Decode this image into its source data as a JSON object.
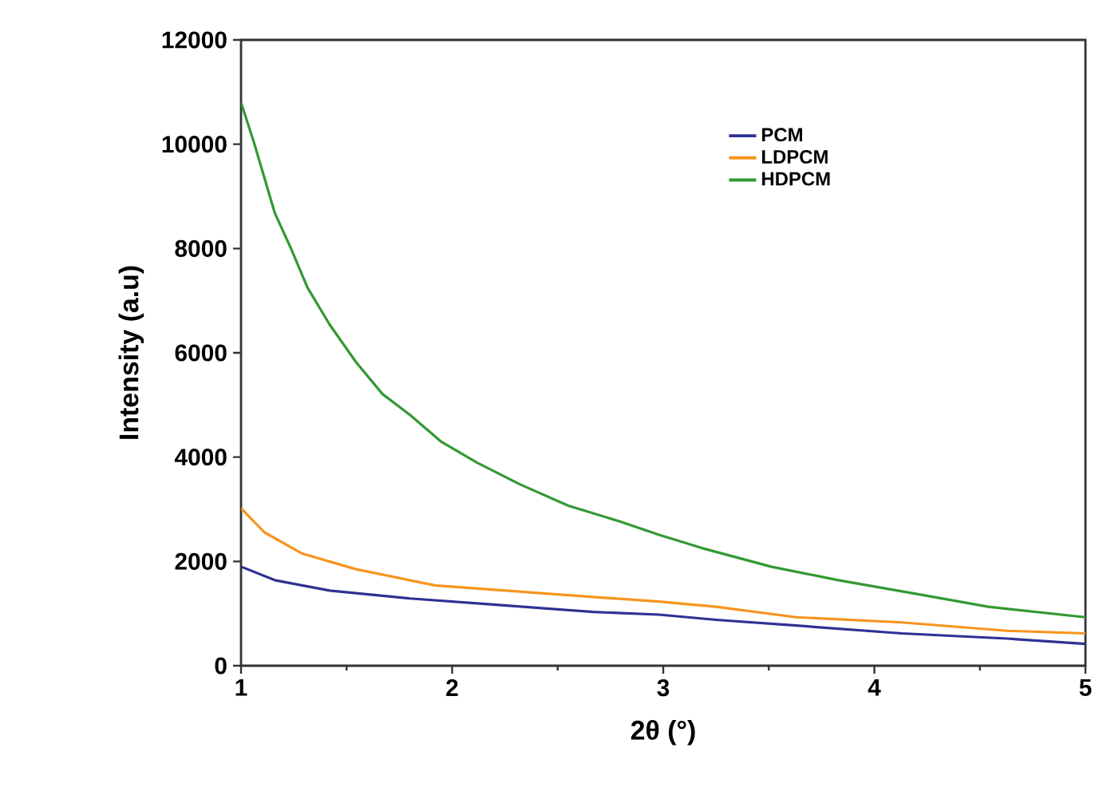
{
  "chart_data": {
    "type": "line",
    "xlabel": "2θ (°)",
    "ylabel": "Intensity (a.u)",
    "xlim": [
      1,
      5
    ],
    "ylim": [
      0,
      12000
    ],
    "xticks": [
      1,
      2,
      3,
      4,
      5
    ],
    "yticks": [
      0,
      2000,
      4000,
      6000,
      8000,
      10000,
      12000
    ],
    "grid": false,
    "legend": "top right",
    "marker": "none",
    "line_style": "solid",
    "series": [
      {
        "name": "PCM",
        "color": "#2e3192",
        "x": [
          1,
          1.16,
          1.42,
          1.8,
          2.17,
          2.67,
          2.98,
          3.25,
          3.63,
          4.13,
          4.63,
          5
        ],
        "values": [
          1900,
          1640,
          1440,
          1290,
          1180,
          1030,
          980,
          880,
          770,
          620,
          520,
          420
        ]
      },
      {
        "name": "LDPCM",
        "color": "#f7941d",
        "x": [
          1,
          1.11,
          1.29,
          1.545,
          1.92,
          2.42,
          2.98,
          3.25,
          3.63,
          4.13,
          4.63,
          5
        ],
        "values": [
          3020,
          2560,
          2150,
          1850,
          1540,
          1390,
          1230,
          1130,
          930,
          830,
          670,
          620
        ]
      },
      {
        "name": "HDPCM",
        "color": "#339933",
        "x": [
          1,
          1.063,
          1.16,
          1.24,
          1.315,
          1.42,
          1.545,
          1.67,
          1.8,
          1.95,
          2.12,
          2.32,
          2.55,
          2.8,
          2.98,
          3.18,
          3.51,
          3.83,
          4.18,
          4.54,
          5
        ],
        "values": [
          10800,
          10010,
          8680,
          7970,
          7250,
          6540,
          5820,
          5210,
          4810,
          4290,
          3890,
          3480,
          3070,
          2760,
          2510,
          2260,
          1900,
          1640,
          1390,
          1130,
          930
        ]
      }
    ]
  }
}
